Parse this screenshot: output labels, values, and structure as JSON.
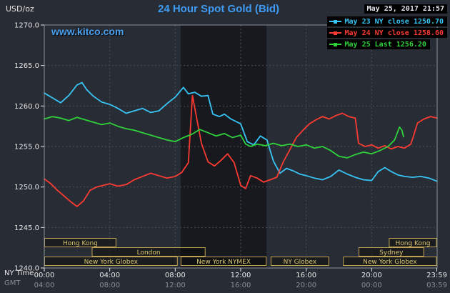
{
  "header": {
    "unit": "USD/oz",
    "title": "24 Hour Spot Gold (Bid)",
    "datetime": "May 25, 2017 21:57",
    "watermark": "www.kitco.com"
  },
  "footer": {
    "ny_time": "NY Time",
    "gmt": "GMT"
  },
  "colors": {
    "background": "#282c34",
    "title": "#3e9bf4",
    "watermark": "#4aa0f0",
    "axis_text": "#e6e6e6",
    "gmt_text": "#8a8d92",
    "grid": "#4a4e55",
    "border": "#8d9298",
    "band": "#0a0b0e",
    "session_border": "#bfa254",
    "session_text": "#d8c472",
    "legend_background": "#000000"
  },
  "chart_data": {
    "type": "line",
    "title": "24 Hour Spot Gold (Bid)",
    "ylabel": "USD/oz",
    "xlabel": "NY Time",
    "ylim": [
      1240,
      1270
    ],
    "y_ticks": [
      1270,
      1265,
      1260,
      1255,
      1250,
      1245,
      1240
    ],
    "y_tick_labels": [
      "1270.0",
      "1265.0",
      "1260.0",
      "1255.0",
      "1250.0",
      "1245.0",
      "1240.0"
    ],
    "x_hours_range": [
      0,
      24
    ],
    "x_ticks_hours": [
      0,
      4,
      8,
      12,
      16,
      20,
      23.98
    ],
    "x_tick_labels_ny": [
      "00:00",
      "04:00",
      "08:00",
      "12:00",
      "16:00",
      "20:00",
      "23:59"
    ],
    "x_tick_labels_gmt": [
      "04:00",
      "08:00",
      "12:00",
      "16:00",
      "20:00",
      "00:00",
      "03:59"
    ],
    "grid": true,
    "legend_position": "top-right",
    "nymex_highlight_hours": [
      8.33,
      13.58
    ],
    "series": [
      {
        "name": "May 23",
        "legend": "May 23 NY close 1250.70",
        "close": 1250.7,
        "color": "#38c5f5",
        "points": [
          [
            0,
            1261.6
          ],
          [
            0.5,
            1261.0
          ],
          [
            1,
            1260.4
          ],
          [
            1.5,
            1261.3
          ],
          [
            2,
            1262.6
          ],
          [
            2.3,
            1262.9
          ],
          [
            2.6,
            1262.0
          ],
          [
            3,
            1261.2
          ],
          [
            3.5,
            1260.5
          ],
          [
            4,
            1260.2
          ],
          [
            4.5,
            1259.7
          ],
          [
            5,
            1259.1
          ],
          [
            5.5,
            1259.4
          ],
          [
            6,
            1259.7
          ],
          [
            6.5,
            1259.2
          ],
          [
            7,
            1259.4
          ],
          [
            7.5,
            1260.3
          ],
          [
            8,
            1261.1
          ],
          [
            8.5,
            1262.3
          ],
          [
            8.8,
            1261.5
          ],
          [
            9.2,
            1261.7
          ],
          [
            9.6,
            1261.2
          ],
          [
            10,
            1261.3
          ],
          [
            10.3,
            1259.0
          ],
          [
            10.7,
            1258.7
          ],
          [
            11,
            1259.0
          ],
          [
            11.4,
            1258.4
          ],
          [
            12,
            1257.8
          ],
          [
            12.4,
            1255.6
          ],
          [
            12.8,
            1255.2
          ],
          [
            13.2,
            1256.3
          ],
          [
            13.6,
            1255.8
          ],
          [
            14,
            1253.2
          ],
          [
            14.4,
            1251.7
          ],
          [
            14.8,
            1252.3
          ],
          [
            15.2,
            1252.0
          ],
          [
            15.6,
            1251.6
          ],
          [
            16,
            1251.4
          ],
          [
            16.5,
            1251.1
          ],
          [
            17,
            1250.9
          ],
          [
            17.5,
            1251.3
          ],
          [
            18,
            1252.1
          ],
          [
            18.5,
            1251.6
          ],
          [
            19,
            1251.2
          ],
          [
            19.5,
            1250.9
          ],
          [
            20,
            1250.8
          ],
          [
            20.4,
            1251.9
          ],
          [
            20.8,
            1252.4
          ],
          [
            21.2,
            1251.9
          ],
          [
            21.6,
            1251.5
          ],
          [
            22,
            1251.3
          ],
          [
            22.5,
            1251.2
          ],
          [
            23,
            1251.3
          ],
          [
            23.5,
            1251.1
          ],
          [
            24,
            1250.7
          ]
        ]
      },
      {
        "name": "May 24",
        "legend": "May 24 NY close 1258.60",
        "close": 1258.6,
        "color": "#fb3b32",
        "points": [
          [
            0,
            1251.0
          ],
          [
            0.4,
            1250.4
          ],
          [
            0.8,
            1249.6
          ],
          [
            1.2,
            1248.9
          ],
          [
            1.6,
            1248.2
          ],
          [
            2,
            1247.6
          ],
          [
            2.4,
            1248.3
          ],
          [
            2.8,
            1249.6
          ],
          [
            3.2,
            1250.0
          ],
          [
            3.6,
            1250.2
          ],
          [
            4,
            1250.4
          ],
          [
            4.5,
            1250.1
          ],
          [
            5,
            1250.3
          ],
          [
            5.5,
            1250.9
          ],
          [
            6,
            1251.3
          ],
          [
            6.5,
            1251.7
          ],
          [
            7,
            1251.4
          ],
          [
            7.5,
            1251.1
          ],
          [
            8,
            1251.3
          ],
          [
            8.4,
            1251.8
          ],
          [
            8.8,
            1253.0
          ],
          [
            9.05,
            1261.3
          ],
          [
            9.3,
            1258.6
          ],
          [
            9.6,
            1255.4
          ],
          [
            10,
            1253.1
          ],
          [
            10.4,
            1252.6
          ],
          [
            10.8,
            1253.3
          ],
          [
            11.2,
            1254.1
          ],
          [
            11.6,
            1253.0
          ],
          [
            12,
            1250.2
          ],
          [
            12.3,
            1249.8
          ],
          [
            12.6,
            1251.4
          ],
          [
            13,
            1251.1
          ],
          [
            13.4,
            1250.6
          ],
          [
            13.8,
            1250.9
          ],
          [
            14.2,
            1251.2
          ],
          [
            14.6,
            1253.1
          ],
          [
            15,
            1254.6
          ],
          [
            15.4,
            1256.1
          ],
          [
            15.8,
            1257.0
          ],
          [
            16.2,
            1257.8
          ],
          [
            16.6,
            1258.3
          ],
          [
            17,
            1258.7
          ],
          [
            17.4,
            1258.4
          ],
          [
            17.8,
            1258.8
          ],
          [
            18.2,
            1259.1
          ],
          [
            18.6,
            1258.7
          ],
          [
            19,
            1258.5
          ],
          [
            19.2,
            1255.4
          ],
          [
            19.6,
            1255.0
          ],
          [
            20,
            1255.2
          ],
          [
            20.4,
            1254.8
          ],
          [
            20.8,
            1255.1
          ],
          [
            21.2,
            1254.7
          ],
          [
            21.6,
            1255.0
          ],
          [
            22,
            1254.8
          ],
          [
            22.4,
            1255.3
          ],
          [
            22.8,
            1257.9
          ],
          [
            23.2,
            1258.4
          ],
          [
            23.6,
            1258.7
          ],
          [
            24,
            1258.5
          ]
        ]
      },
      {
        "name": "May 25",
        "legend": "May 25 Last 1256.20",
        "last": 1256.2,
        "color": "#2fd23c",
        "points": [
          [
            0,
            1258.4
          ],
          [
            0.5,
            1258.7
          ],
          [
            1,
            1258.5
          ],
          [
            1.5,
            1258.2
          ],
          [
            2,
            1258.6
          ],
          [
            2.5,
            1258.3
          ],
          [
            3,
            1258.0
          ],
          [
            3.5,
            1257.7
          ],
          [
            4,
            1257.9
          ],
          [
            4.5,
            1257.5
          ],
          [
            5,
            1257.2
          ],
          [
            5.5,
            1257.0
          ],
          [
            6,
            1256.7
          ],
          [
            6.5,
            1256.4
          ],
          [
            7,
            1256.1
          ],
          [
            7.5,
            1255.8
          ],
          [
            8,
            1255.6
          ],
          [
            8.5,
            1256.1
          ],
          [
            9,
            1256.5
          ],
          [
            9.5,
            1257.1
          ],
          [
            10,
            1256.7
          ],
          [
            10.5,
            1256.3
          ],
          [
            11,
            1256.6
          ],
          [
            11.5,
            1256.1
          ],
          [
            12,
            1256.4
          ],
          [
            12.3,
            1255.3
          ],
          [
            12.6,
            1255.0
          ],
          [
            13,
            1255.3
          ],
          [
            13.5,
            1255.1
          ],
          [
            14,
            1255.4
          ],
          [
            14.5,
            1255.1
          ],
          [
            15,
            1255.3
          ],
          [
            15.5,
            1255.0
          ],
          [
            16,
            1255.2
          ],
          [
            16.5,
            1254.8
          ],
          [
            17,
            1255.0
          ],
          [
            17.5,
            1254.5
          ],
          [
            18,
            1253.8
          ],
          [
            18.5,
            1253.6
          ],
          [
            19,
            1254.0
          ],
          [
            19.5,
            1254.3
          ],
          [
            20,
            1254.1
          ],
          [
            20.5,
            1254.5
          ],
          [
            21,
            1255.0
          ],
          [
            21.4,
            1255.8
          ],
          [
            21.7,
            1257.4
          ],
          [
            21.85,
            1257.0
          ],
          [
            21.95,
            1256.2
          ]
        ]
      }
    ],
    "sessions": [
      {
        "label": "Hong Kong",
        "row": 0,
        "hours": [
          0,
          4.4
        ]
      },
      {
        "label": "Hong Kong",
        "row": 0,
        "hours": [
          21.05,
          23.98
        ]
      },
      {
        "label": "London",
        "row": 1,
        "hours": [
          2.9,
          9.85
        ]
      },
      {
        "label": "Sydney",
        "row": 1,
        "hours": [
          19.2,
          23.2
        ]
      },
      {
        "label": "New York Globex",
        "row": 2,
        "hours": [
          0,
          8.15
        ]
      },
      {
        "label": "New York NYMEX",
        "row": 2,
        "hours": [
          8.33,
          13.58
        ]
      },
      {
        "label": "NY Globex",
        "row": 2,
        "hours": [
          13.83,
          17.4
        ]
      },
      {
        "label": "New York Globex",
        "row": 2,
        "hours": [
          18.25,
          23.98
        ]
      }
    ]
  }
}
